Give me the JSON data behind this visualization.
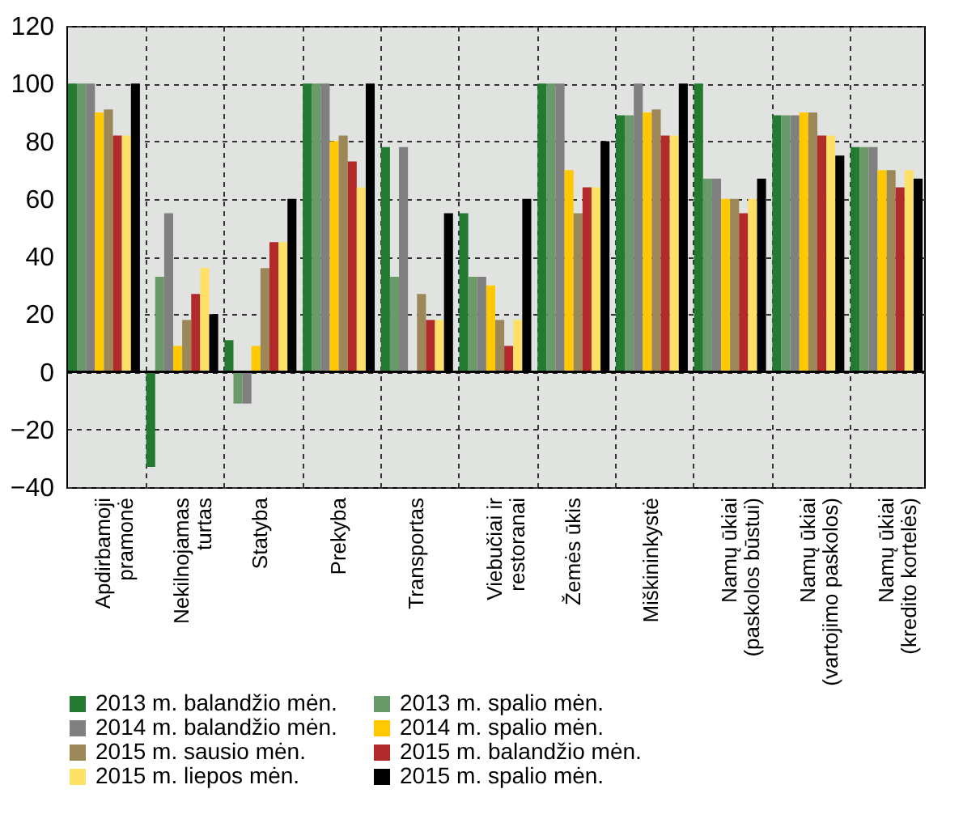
{
  "chart_data": {
    "type": "bar",
    "categories": [
      "Apdirbamoji\npramonė",
      "Nekilnojamas\nturtas",
      "Statyba",
      "Prekyba",
      "Transportas",
      "Viebučiai ir\nrestoranai",
      "Žemės ūkis",
      "Miškininkystė",
      "Namų ūkiai\n(paskolos būstui)",
      "Namų ūkiai\n(vartojimo paskolos)",
      "Namų ūkiai\n(kredito kortelės)"
    ],
    "series": [
      {
        "name": "2013 m. balandžio mėn.",
        "color": "#237a30",
        "values": [
          100,
          -33,
          11,
          100,
          78,
          55,
          100,
          89,
          100,
          89,
          78
        ]
      },
      {
        "name": "2013 m. spalio mėn.",
        "color": "#6a9a6a",
        "values": [
          100,
          33,
          -11,
          100,
          33,
          33,
          100,
          89,
          67,
          89,
          78
        ]
      },
      {
        "name": "2014 m. balandžio mėn.",
        "color": "#808080",
        "values": [
          100,
          55,
          -11,
          100,
          78,
          33,
          100,
          100,
          67,
          89,
          78
        ]
      },
      {
        "name": "2014 m. spalio mėn.",
        "color": "#ffc800",
        "values": [
          90,
          9,
          9,
          80,
          0,
          30,
          70,
          90,
          60,
          90,
          70
        ]
      },
      {
        "name": "2015 m. sausio mėn.",
        "color": "#9b8758",
        "values": [
          91,
          18,
          36,
          82,
          27,
          18,
          55,
          91,
          60,
          90,
          70
        ]
      },
      {
        "name": "2015 m. balandžio mėn.",
        "color": "#b22a2a",
        "values": [
          82,
          27,
          45,
          73,
          18,
          9,
          64,
          82,
          55,
          82,
          64
        ]
      },
      {
        "name": "2015 m. liepos mėn.",
        "color": "#ffe066",
        "values": [
          82,
          36,
          45,
          64,
          18,
          18,
          64,
          82,
          60,
          82,
          70
        ]
      },
      {
        "name": "2015 m. spalio mėn.",
        "color": "#000000",
        "values": [
          100,
          20,
          60,
          100,
          55,
          60,
          80,
          100,
          67,
          75,
          67
        ]
      }
    ],
    "ylim": [
      -40,
      120
    ],
    "yticks": [
      -40,
      -20,
      0,
      20,
      40,
      60,
      80,
      100,
      120
    ],
    "grid": true,
    "legend": "bottom"
  }
}
